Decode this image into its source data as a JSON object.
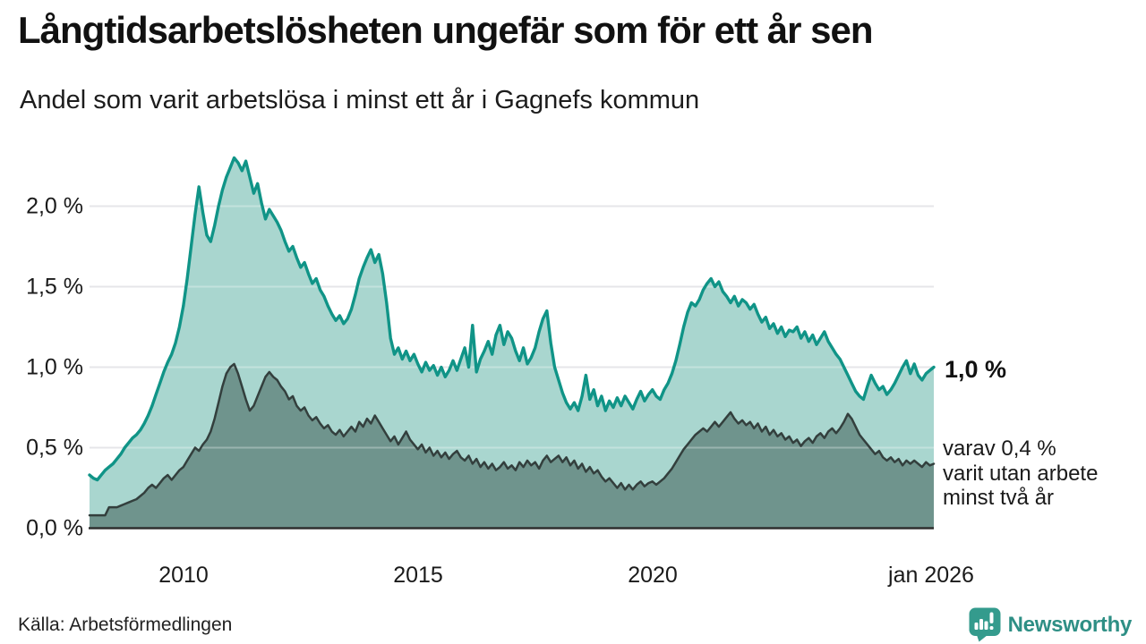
{
  "header": {
    "title": "Långtidsarbetslösheten ungefär som för ett år sen",
    "subtitle": "Andel som varit arbetslösa i minst ett år i Gagnefs kommun"
  },
  "annotations": {
    "latest_value": "1,0 %",
    "sub_lines": [
      "varav 0,4 %",
      "varit utan arbete",
      "minst två år"
    ]
  },
  "footer": {
    "source": "Källa: Arbetsförmedlingen",
    "brand": "Newsworthy"
  },
  "chart_data": {
    "type": "area",
    "unit": "%",
    "frequency": "monthly",
    "x_start": "2008-01",
    "x_end": "2026-01",
    "ylim": [
      0,
      2.4
    ],
    "grid": true,
    "yticks": [
      {
        "label": "0,0 %",
        "value": 0
      },
      {
        "label": "0,5 %",
        "value": 0.5
      },
      {
        "label": "1,0 %",
        "value": 1
      },
      {
        "label": "1,5 %",
        "value": 1.5
      },
      {
        "label": "2,0 %",
        "value": 2
      }
    ],
    "xticks": [
      {
        "label": "2010",
        "month_index": 24
      },
      {
        "label": "2015",
        "month_index": 84
      },
      {
        "label": "2020",
        "month_index": 144
      },
      {
        "label": "jan 2026",
        "month_index": 216
      }
    ],
    "colors": {
      "line_1yr": "#109487",
      "fill_1yr": "#a9d6cf",
      "line_2yr": "#333f3d",
      "fill_2yr": "#6f948d",
      "gridline": "#dcdce0",
      "axis": "#2f2f2f",
      "brand_teal": "#2e8f85",
      "brand_icon": "#349b8d"
    },
    "series": [
      {
        "name": "arbetslösa minst ett år",
        "final_label": "1,0 %",
        "values": [
          0.33,
          0.31,
          0.3,
          0.33,
          0.36,
          0.38,
          0.4,
          0.43,
          0.46,
          0.5,
          0.53,
          0.56,
          0.58,
          0.61,
          0.65,
          0.7,
          0.76,
          0.83,
          0.9,
          0.97,
          1.03,
          1.08,
          1.15,
          1.25,
          1.38,
          1.55,
          1.75,
          1.95,
          2.12,
          1.96,
          1.82,
          1.78,
          1.88,
          2.0,
          2.1,
          2.18,
          2.24,
          2.3,
          2.27,
          2.22,
          2.28,
          2.18,
          2.08,
          2.14,
          2.02,
          1.92,
          1.98,
          1.94,
          1.9,
          1.85,
          1.78,
          1.72,
          1.75,
          1.68,
          1.62,
          1.65,
          1.58,
          1.52,
          1.55,
          1.48,
          1.44,
          1.38,
          1.33,
          1.29,
          1.32,
          1.27,
          1.3,
          1.36,
          1.45,
          1.55,
          1.62,
          1.68,
          1.73,
          1.65,
          1.7,
          1.58,
          1.4,
          1.18,
          1.08,
          1.12,
          1.05,
          1.1,
          1.04,
          1.08,
          1.02,
          0.97,
          1.03,
          0.98,
          1.01,
          0.95,
          1.0,
          0.94,
          0.98,
          1.04,
          0.98,
          1.05,
          1.12,
          1.0,
          1.26,
          0.97,
          1.05,
          1.1,
          1.16,
          1.08,
          1.2,
          1.26,
          1.14,
          1.22,
          1.18,
          1.1,
          1.04,
          1.12,
          1.02,
          1.06,
          1.12,
          1.22,
          1.3,
          1.35,
          1.15,
          1.0,
          0.92,
          0.84,
          0.78,
          0.74,
          0.78,
          0.73,
          0.82,
          0.95,
          0.8,
          0.86,
          0.76,
          0.82,
          0.73,
          0.79,
          0.75,
          0.81,
          0.76,
          0.82,
          0.78,
          0.74,
          0.8,
          0.85,
          0.79,
          0.83,
          0.86,
          0.82,
          0.8,
          0.86,
          0.9,
          0.96,
          1.04,
          1.14,
          1.25,
          1.34,
          1.4,
          1.38,
          1.42,
          1.48,
          1.52,
          1.55,
          1.5,
          1.53,
          1.47,
          1.44,
          1.4,
          1.44,
          1.38,
          1.42,
          1.4,
          1.36,
          1.39,
          1.33,
          1.28,
          1.31,
          1.24,
          1.27,
          1.21,
          1.25,
          1.19,
          1.23,
          1.22,
          1.25,
          1.18,
          1.22,
          1.16,
          1.2,
          1.14,
          1.18,
          1.22,
          1.16,
          1.12,
          1.08,
          1.05,
          1.0,
          0.95,
          0.9,
          0.85,
          0.82,
          0.8,
          0.88,
          0.95,
          0.9,
          0.86,
          0.88,
          0.83,
          0.86,
          0.9,
          0.95,
          1.0,
          1.04,
          0.96,
          1.02,
          0.95,
          0.92,
          0.96,
          0.98,
          1.0
        ]
      },
      {
        "name": "varav utan arbete minst två år",
        "final_label": "0,4 %",
        "values": [
          0.08,
          0.08,
          0.08,
          0.08,
          0.08,
          0.13,
          0.13,
          0.13,
          0.14,
          0.15,
          0.16,
          0.17,
          0.18,
          0.2,
          0.22,
          0.25,
          0.27,
          0.25,
          0.28,
          0.31,
          0.33,
          0.3,
          0.33,
          0.36,
          0.38,
          0.42,
          0.46,
          0.5,
          0.48,
          0.52,
          0.55,
          0.6,
          0.68,
          0.78,
          0.88,
          0.96,
          1.0,
          1.02,
          0.96,
          0.88,
          0.8,
          0.73,
          0.76,
          0.82,
          0.88,
          0.94,
          0.97,
          0.94,
          0.92,
          0.88,
          0.85,
          0.8,
          0.82,
          0.76,
          0.73,
          0.75,
          0.7,
          0.67,
          0.69,
          0.65,
          0.62,
          0.64,
          0.6,
          0.58,
          0.61,
          0.57,
          0.6,
          0.63,
          0.6,
          0.66,
          0.63,
          0.68,
          0.65,
          0.7,
          0.66,
          0.62,
          0.58,
          0.54,
          0.57,
          0.52,
          0.56,
          0.6,
          0.55,
          0.52,
          0.49,
          0.52,
          0.47,
          0.5,
          0.45,
          0.48,
          0.44,
          0.47,
          0.43,
          0.46,
          0.48,
          0.44,
          0.42,
          0.45,
          0.4,
          0.43,
          0.38,
          0.41,
          0.37,
          0.4,
          0.36,
          0.38,
          0.41,
          0.37,
          0.39,
          0.36,
          0.41,
          0.38,
          0.42,
          0.39,
          0.41,
          0.37,
          0.42,
          0.45,
          0.41,
          0.43,
          0.45,
          0.41,
          0.44,
          0.39,
          0.42,
          0.37,
          0.4,
          0.35,
          0.38,
          0.34,
          0.36,
          0.32,
          0.29,
          0.31,
          0.28,
          0.25,
          0.28,
          0.24,
          0.27,
          0.24,
          0.27,
          0.29,
          0.26,
          0.28,
          0.29,
          0.27,
          0.29,
          0.31,
          0.34,
          0.37,
          0.41,
          0.45,
          0.49,
          0.52,
          0.55,
          0.58,
          0.6,
          0.62,
          0.6,
          0.63,
          0.66,
          0.63,
          0.66,
          0.69,
          0.72,
          0.68,
          0.65,
          0.67,
          0.64,
          0.66,
          0.62,
          0.65,
          0.6,
          0.63,
          0.58,
          0.61,
          0.57,
          0.59,
          0.55,
          0.57,
          0.53,
          0.55,
          0.51,
          0.54,
          0.56,
          0.53,
          0.57,
          0.59,
          0.56,
          0.6,
          0.62,
          0.59,
          0.62,
          0.66,
          0.71,
          0.68,
          0.63,
          0.58,
          0.55,
          0.52,
          0.49,
          0.46,
          0.48,
          0.44,
          0.42,
          0.44,
          0.41,
          0.43,
          0.39,
          0.42,
          0.4,
          0.42,
          0.4,
          0.38,
          0.41,
          0.39,
          0.4
        ]
      }
    ]
  }
}
